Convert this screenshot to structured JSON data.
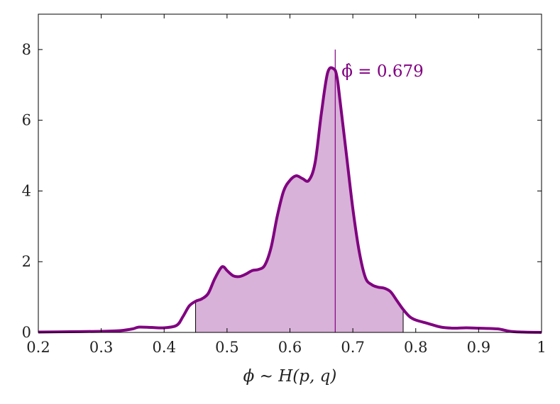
{
  "chart_data": {
    "type": "area",
    "title": "",
    "xlabel": "ϕ ∼ H(p, q)",
    "ylabel": "",
    "xlim": [
      0.2,
      1.0
    ],
    "ylim": [
      0,
      9
    ],
    "xticks": [
      0.2,
      0.3,
      0.4,
      0.5,
      0.6,
      0.7,
      0.8,
      0.9,
      1.0
    ],
    "xtick_labels": [
      "0.2",
      "0.3",
      "0.4",
      "0.5",
      "0.6",
      "0.7",
      "0.8",
      "0.9",
      "1"
    ],
    "yticks": [
      0,
      2,
      4,
      6,
      8
    ],
    "ytick_labels": [
      "0",
      "2",
      "4",
      "6",
      "8"
    ],
    "grid": false,
    "series": [
      {
        "color": "#800080",
        "x": [
          0.2,
          0.25,
          0.3,
          0.33,
          0.35,
          0.36,
          0.38,
          0.4,
          0.42,
          0.43,
          0.44,
          0.45,
          0.46,
          0.47,
          0.48,
          0.49,
          0.495,
          0.5,
          0.51,
          0.52,
          0.53,
          0.54,
          0.55,
          0.56,
          0.57,
          0.58,
          0.59,
          0.6,
          0.61,
          0.62,
          0.63,
          0.64,
          0.65,
          0.66,
          0.67,
          0.675,
          0.68,
          0.69,
          0.7,
          0.71,
          0.72,
          0.73,
          0.74,
          0.75,
          0.76,
          0.77,
          0.78,
          0.79,
          0.8,
          0.82,
          0.84,
          0.86,
          0.88,
          0.9,
          0.93,
          0.95,
          0.97,
          1.0
        ],
        "y": [
          0.01,
          0.02,
          0.03,
          0.05,
          0.1,
          0.15,
          0.14,
          0.13,
          0.2,
          0.45,
          0.75,
          0.88,
          0.95,
          1.1,
          1.5,
          1.82,
          1.85,
          1.75,
          1.6,
          1.58,
          1.65,
          1.75,
          1.78,
          1.9,
          2.4,
          3.3,
          4.0,
          4.3,
          4.43,
          4.35,
          4.3,
          4.8,
          6.2,
          7.35,
          7.45,
          7.2,
          6.5,
          5.0,
          3.5,
          2.3,
          1.55,
          1.35,
          1.28,
          1.25,
          1.15,
          0.9,
          0.65,
          0.45,
          0.35,
          0.25,
          0.15,
          0.12,
          0.13,
          0.12,
          0.1,
          0.03,
          0.01,
          0.0
        ]
      }
    ],
    "shaded_region": {
      "x_from": 0.45,
      "x_to": 0.78,
      "fill": "#d8b2d8"
    },
    "vline": {
      "x": 0.672,
      "y_to": 8.0,
      "label": "ϕ̂ = 0.679"
    }
  }
}
